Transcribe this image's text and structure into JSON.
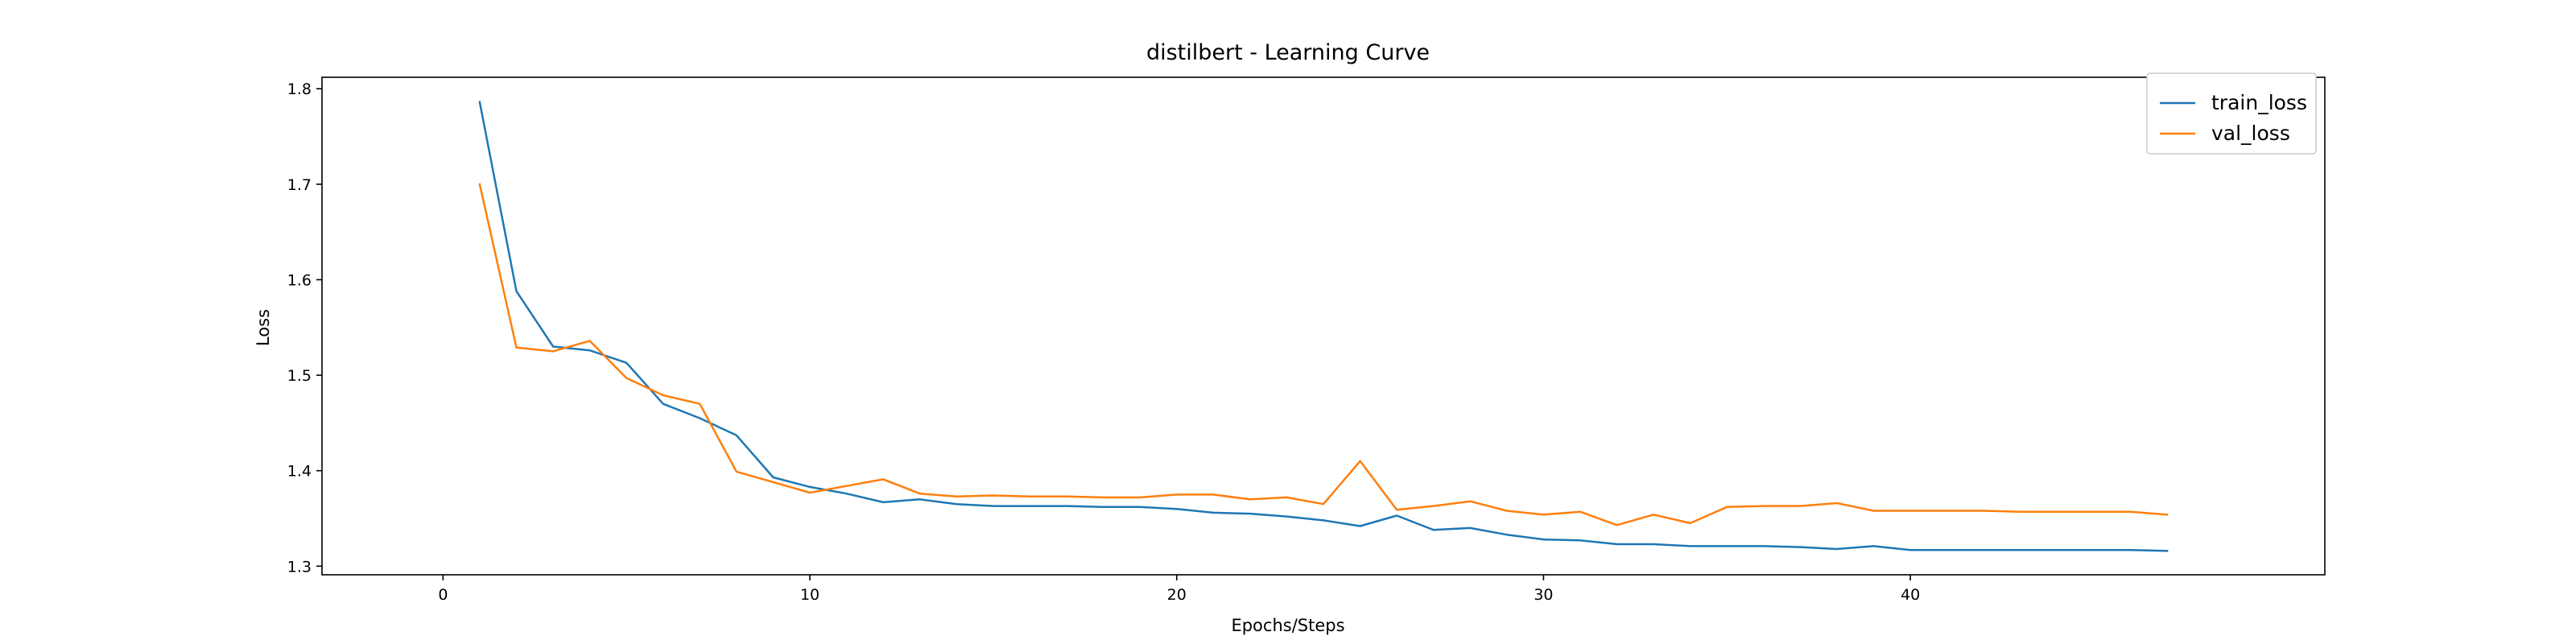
{
  "chart_data": {
    "type": "line",
    "title": "distilbert - Learning Curve",
    "xlabel": "Epochs/Steps",
    "ylabel": "Loss",
    "xlim": [
      -3.3,
      51.3
    ],
    "ylim": [
      1.291,
      1.812
    ],
    "xticks": [
      0,
      10,
      20,
      30,
      40
    ],
    "yticks": [
      1.3,
      1.4,
      1.5,
      1.6,
      1.7,
      1.8
    ],
    "grid": false,
    "legend_position": "top-right",
    "x": [
      1,
      2,
      3,
      4,
      5,
      6,
      7,
      8,
      9,
      10,
      11,
      12,
      13,
      14,
      15,
      16,
      17,
      18,
      19,
      20,
      21,
      22,
      23,
      24,
      25,
      26,
      27,
      28,
      29,
      30,
      31,
      32,
      33,
      34,
      35,
      36,
      37,
      38,
      39,
      40,
      41,
      42,
      43,
      44,
      45,
      46,
      47
    ],
    "series": [
      {
        "name": "train_loss",
        "color": "#1f77b4",
        "values": [
          1.786,
          1.588,
          1.53,
          1.526,
          1.513,
          1.47,
          1.455,
          1.437,
          1.393,
          1.383,
          1.376,
          1.367,
          1.37,
          1.365,
          1.363,
          1.363,
          1.363,
          1.362,
          1.362,
          1.36,
          1.356,
          1.355,
          1.352,
          1.348,
          1.342,
          1.353,
          1.338,
          1.34,
          1.333,
          1.328,
          1.327,
          1.323,
          1.323,
          1.321,
          1.321,
          1.321,
          1.32,
          1.318,
          1.321,
          1.317,
          1.317,
          1.317,
          1.317,
          1.317,
          1.317,
          1.317,
          1.316
        ]
      },
      {
        "name": "val_loss",
        "color": "#ff7f0e",
        "values": [
          1.7,
          1.529,
          1.525,
          1.536,
          1.497,
          1.479,
          1.47,
          1.399,
          1.388,
          1.377,
          1.384,
          1.391,
          1.376,
          1.373,
          1.374,
          1.373,
          1.373,
          1.372,
          1.372,
          1.375,
          1.375,
          1.37,
          1.372,
          1.365,
          1.41,
          1.359,
          1.363,
          1.368,
          1.358,
          1.354,
          1.357,
          1.343,
          1.354,
          1.345,
          1.362,
          1.363,
          1.363,
          1.366,
          1.358,
          1.358,
          1.358,
          1.358,
          1.357,
          1.357,
          1.357,
          1.357,
          1.354
        ]
      }
    ]
  }
}
